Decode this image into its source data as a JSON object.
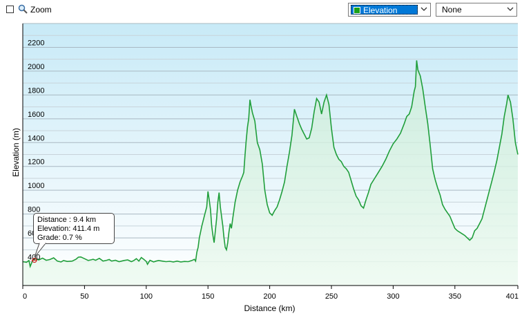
{
  "toolbar": {
    "zoom_label": "Zoom",
    "metric_select": {
      "value": "Elevation",
      "swatch_color": "#1aa01a"
    },
    "second_select": {
      "value": "None"
    }
  },
  "tooltip": {
    "distance": "Distance  : 9.4 km",
    "elevation": "Elevation: 411.4 m",
    "grade": "Grade: 0.7 %"
  },
  "chart_data": {
    "type": "area",
    "xlabel": "Distance  (km)",
    "ylabel": "Elevation (m)",
    "xlim": [
      0,
      401
    ],
    "ylim": [
      200,
      2400
    ],
    "x_ticks": [
      0,
      50,
      100,
      150,
      200,
      250,
      300,
      350,
      401
    ],
    "y_ticks": [
      400,
      600,
      800,
      1000,
      1200,
      1400,
      1600,
      1800,
      2000,
      2200
    ],
    "grid": true,
    "line_color": "#1f9e3a",
    "cursor": {
      "x": 9.4,
      "y": 411.4
    },
    "series": [
      {
        "points": [
          [
            0,
            400
          ],
          [
            3,
            395
          ],
          [
            5,
            410
          ],
          [
            6,
            360
          ],
          [
            8,
            410
          ],
          [
            10,
            425
          ],
          [
            13,
            415
          ],
          [
            16,
            430
          ],
          [
            19,
            412
          ],
          [
            22,
            418
          ],
          [
            25,
            432
          ],
          [
            28,
            405
          ],
          [
            31,
            398
          ],
          [
            33,
            410
          ],
          [
            36,
            402
          ],
          [
            40,
            405
          ],
          [
            43,
            420
          ],
          [
            45,
            438
          ],
          [
            47,
            440
          ],
          [
            50,
            425
          ],
          [
            53,
            410
          ],
          [
            55,
            415
          ],
          [
            57,
            420
          ],
          [
            59,
            412
          ],
          [
            62,
            428
          ],
          [
            65,
            405
          ],
          [
            68,
            412
          ],
          [
            70,
            418
          ],
          [
            72,
            405
          ],
          [
            75,
            412
          ],
          [
            78,
            400
          ],
          [
            80,
            405
          ],
          [
            82,
            410
          ],
          [
            85,
            415
          ],
          [
            88,
            400
          ],
          [
            90,
            410
          ],
          [
            92,
            425
          ],
          [
            94,
            405
          ],
          [
            96,
            435
          ],
          [
            98,
            420
          ],
          [
            100,
            402
          ],
          [
            101,
            378
          ],
          [
            103,
            412
          ],
          [
            106,
            398
          ],
          [
            108,
            405
          ],
          [
            110,
            410
          ],
          [
            113,
            405
          ],
          [
            116,
            400
          ],
          [
            119,
            403
          ],
          [
            122,
            398
          ],
          [
            125,
            405
          ],
          [
            128,
            398
          ],
          [
            131,
            402
          ],
          [
            134,
            400
          ],
          [
            137,
            410
          ],
          [
            139,
            420
          ],
          [
            140,
            405
          ],
          [
            141,
            480
          ],
          [
            142,
            520
          ],
          [
            143,
            600
          ],
          [
            145,
            700
          ],
          [
            147,
            780
          ],
          [
            149,
            860
          ],
          [
            150,
            990
          ],
          [
            151,
            920
          ],
          [
            152,
            840
          ],
          [
            153,
            700
          ],
          [
            154,
            620
          ],
          [
            155,
            560
          ],
          [
            156,
            660
          ],
          [
            157,
            760
          ],
          [
            158,
            900
          ],
          [
            159,
            980
          ],
          [
            160,
            860
          ],
          [
            162,
            700
          ],
          [
            163,
            600
          ],
          [
            164,
            520
          ],
          [
            165,
            500
          ],
          [
            166,
            560
          ],
          [
            167,
            650
          ],
          [
            168,
            720
          ],
          [
            169,
            680
          ],
          [
            170,
            760
          ],
          [
            172,
            900
          ],
          [
            174,
            1000
          ],
          [
            176,
            1070
          ],
          [
            178,
            1120
          ],
          [
            179,
            1150
          ],
          [
            180,
            1290
          ],
          [
            181,
            1420
          ],
          [
            182,
            1530
          ],
          [
            183,
            1600
          ],
          [
            184,
            1760
          ],
          [
            185,
            1700
          ],
          [
            186,
            1650
          ],
          [
            188,
            1580
          ],
          [
            190,
            1400
          ],
          [
            192,
            1340
          ],
          [
            194,
            1220
          ],
          [
            196,
            1000
          ],
          [
            198,
            880
          ],
          [
            200,
            810
          ],
          [
            202,
            790
          ],
          [
            204,
            830
          ],
          [
            206,
            860
          ],
          [
            208,
            920
          ],
          [
            210,
            990
          ],
          [
            212,
            1070
          ],
          [
            214,
            1200
          ],
          [
            216,
            1320
          ],
          [
            218,
            1460
          ],
          [
            220,
            1680
          ],
          [
            222,
            1620
          ],
          [
            224,
            1560
          ],
          [
            226,
            1510
          ],
          [
            228,
            1470
          ],
          [
            230,
            1430
          ],
          [
            232,
            1440
          ],
          [
            234,
            1520
          ],
          [
            236,
            1660
          ],
          [
            238,
            1770
          ],
          [
            240,
            1740
          ],
          [
            242,
            1640
          ],
          [
            244,
            1740
          ],
          [
            246,
            1800
          ],
          [
            248,
            1720
          ],
          [
            250,
            1520
          ],
          [
            252,
            1360
          ],
          [
            254,
            1300
          ],
          [
            256,
            1260
          ],
          [
            258,
            1240
          ],
          [
            260,
            1200
          ],
          [
            262,
            1180
          ],
          [
            264,
            1150
          ],
          [
            266,
            1080
          ],
          [
            268,
            1010
          ],
          [
            270,
            950
          ],
          [
            272,
            920
          ],
          [
            274,
            870
          ],
          [
            276,
            850
          ],
          [
            278,
            920
          ],
          [
            280,
            980
          ],
          [
            282,
            1050
          ],
          [
            285,
            1100
          ],
          [
            288,
            1150
          ],
          [
            291,
            1200
          ],
          [
            294,
            1260
          ],
          [
            297,
            1330
          ],
          [
            300,
            1390
          ],
          [
            303,
            1430
          ],
          [
            306,
            1480
          ],
          [
            309,
            1560
          ],
          [
            311,
            1620
          ],
          [
            313,
            1640
          ],
          [
            315,
            1700
          ],
          [
            317,
            1830
          ],
          [
            318,
            1870
          ],
          [
            319,
            2090
          ],
          [
            320,
            2010
          ],
          [
            322,
            1960
          ],
          [
            324,
            1850
          ],
          [
            326,
            1700
          ],
          [
            328,
            1560
          ],
          [
            330,
            1380
          ],
          [
            332,
            1180
          ],
          [
            334,
            1090
          ],
          [
            336,
            1020
          ],
          [
            338,
            960
          ],
          [
            340,
            880
          ],
          [
            342,
            840
          ],
          [
            344,
            810
          ],
          [
            346,
            780
          ],
          [
            348,
            730
          ],
          [
            350,
            680
          ],
          [
            352,
            660
          ],
          [
            355,
            640
          ],
          [
            358,
            620
          ],
          [
            360,
            600
          ],
          [
            362,
            580
          ],
          [
            364,
            600
          ],
          [
            366,
            660
          ],
          [
            368,
            680
          ],
          [
            370,
            720
          ],
          [
            372,
            760
          ],
          [
            374,
            840
          ],
          [
            376,
            920
          ],
          [
            378,
            1000
          ],
          [
            380,
            1080
          ],
          [
            382,
            1160
          ],
          [
            384,
            1250
          ],
          [
            386,
            1360
          ],
          [
            388,
            1470
          ],
          [
            390,
            1620
          ],
          [
            392,
            1730
          ],
          [
            393,
            1800
          ],
          [
            395,
            1740
          ],
          [
            397,
            1600
          ],
          [
            399,
            1400
          ],
          [
            401,
            1300
          ]
        ]
      }
    ]
  }
}
